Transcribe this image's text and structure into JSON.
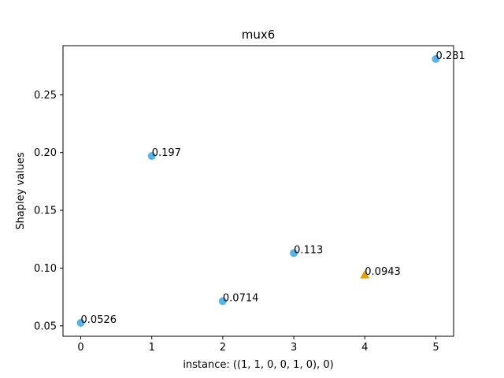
{
  "chart_data": {
    "type": "scatter",
    "title": "mux6",
    "xlabel": "instance: ((1, 1, 0, 0, 1, 0), 0)",
    "ylabel": "Shapley values",
    "xlim": [
      -0.25,
      5.25
    ],
    "ylim": [
      0.041,
      0.2925
    ],
    "xticks": [
      0,
      1,
      2,
      3,
      4,
      5
    ],
    "yticks": [
      0.05,
      0.1,
      0.15,
      0.2,
      0.25
    ],
    "ytick_labels": [
      "0.05",
      "0.10",
      "0.15",
      "0.20",
      "0.25"
    ],
    "grid": false,
    "points": [
      {
        "x": 0,
        "y": 0.0526,
        "label": "0.0526",
        "marker": "circle",
        "color": "#56B4E9"
      },
      {
        "x": 1,
        "y": 0.197,
        "label": "0.197",
        "marker": "circle",
        "color": "#56B4E9"
      },
      {
        "x": 2,
        "y": 0.0714,
        "label": "0.0714",
        "marker": "circle",
        "color": "#56B4E9"
      },
      {
        "x": 3,
        "y": 0.113,
        "label": "0.113",
        "marker": "circle",
        "color": "#56B4E9"
      },
      {
        "x": 4,
        "y": 0.0943,
        "label": "0.0943",
        "marker": "triangle",
        "color": "#E69F00"
      },
      {
        "x": 5,
        "y": 0.281,
        "label": "0.281",
        "marker": "circle",
        "color": "#56B4E9"
      }
    ]
  }
}
